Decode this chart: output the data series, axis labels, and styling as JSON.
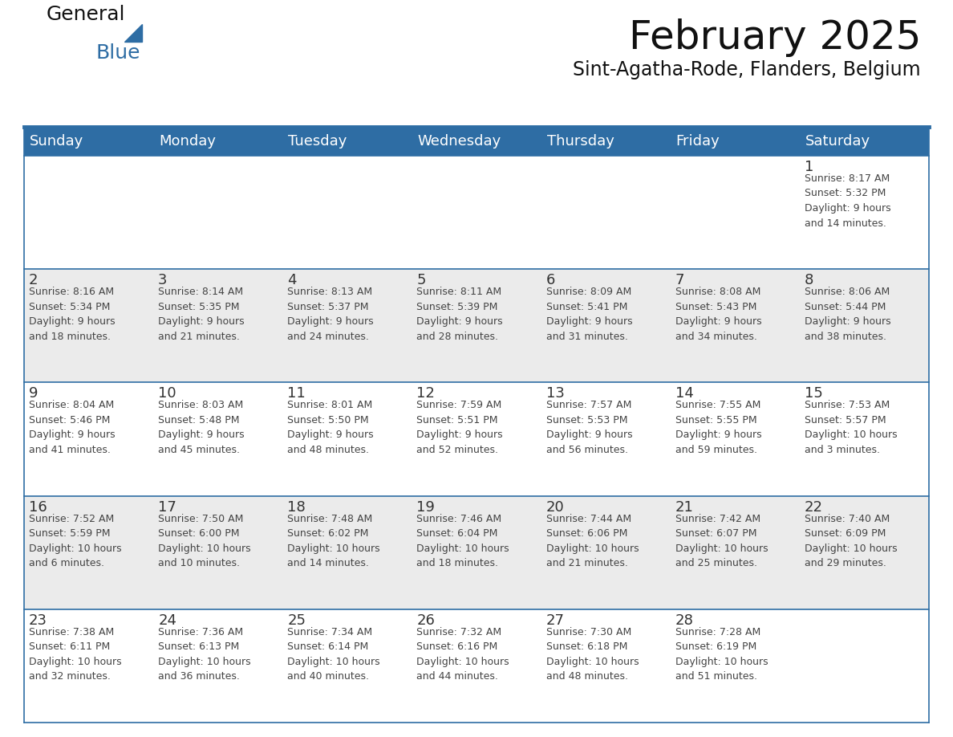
{
  "title": "February 2025",
  "subtitle": "Sint-Agatha-Rode, Flanders, Belgium",
  "header_color": "#2E6DA4",
  "header_text_color": "#FFFFFF",
  "cell_bg_even": "#FFFFFF",
  "cell_bg_odd": "#EBEBEB",
  "day_number_color": "#333333",
  "text_color": "#444444",
  "line_color": "#2E6DA4",
  "days_of_week": [
    "Sunday",
    "Monday",
    "Tuesday",
    "Wednesday",
    "Thursday",
    "Friday",
    "Saturday"
  ],
  "weeks": [
    [
      {
        "day": null,
        "info": null
      },
      {
        "day": null,
        "info": null
      },
      {
        "day": null,
        "info": null
      },
      {
        "day": null,
        "info": null
      },
      {
        "day": null,
        "info": null
      },
      {
        "day": null,
        "info": null
      },
      {
        "day": 1,
        "info": "Sunrise: 8:17 AM\nSunset: 5:32 PM\nDaylight: 9 hours\nand 14 minutes."
      }
    ],
    [
      {
        "day": 2,
        "info": "Sunrise: 8:16 AM\nSunset: 5:34 PM\nDaylight: 9 hours\nand 18 minutes."
      },
      {
        "day": 3,
        "info": "Sunrise: 8:14 AM\nSunset: 5:35 PM\nDaylight: 9 hours\nand 21 minutes."
      },
      {
        "day": 4,
        "info": "Sunrise: 8:13 AM\nSunset: 5:37 PM\nDaylight: 9 hours\nand 24 minutes."
      },
      {
        "day": 5,
        "info": "Sunrise: 8:11 AM\nSunset: 5:39 PM\nDaylight: 9 hours\nand 28 minutes."
      },
      {
        "day": 6,
        "info": "Sunrise: 8:09 AM\nSunset: 5:41 PM\nDaylight: 9 hours\nand 31 minutes."
      },
      {
        "day": 7,
        "info": "Sunrise: 8:08 AM\nSunset: 5:43 PM\nDaylight: 9 hours\nand 34 minutes."
      },
      {
        "day": 8,
        "info": "Sunrise: 8:06 AM\nSunset: 5:44 PM\nDaylight: 9 hours\nand 38 minutes."
      }
    ],
    [
      {
        "day": 9,
        "info": "Sunrise: 8:04 AM\nSunset: 5:46 PM\nDaylight: 9 hours\nand 41 minutes."
      },
      {
        "day": 10,
        "info": "Sunrise: 8:03 AM\nSunset: 5:48 PM\nDaylight: 9 hours\nand 45 minutes."
      },
      {
        "day": 11,
        "info": "Sunrise: 8:01 AM\nSunset: 5:50 PM\nDaylight: 9 hours\nand 48 minutes."
      },
      {
        "day": 12,
        "info": "Sunrise: 7:59 AM\nSunset: 5:51 PM\nDaylight: 9 hours\nand 52 minutes."
      },
      {
        "day": 13,
        "info": "Sunrise: 7:57 AM\nSunset: 5:53 PM\nDaylight: 9 hours\nand 56 minutes."
      },
      {
        "day": 14,
        "info": "Sunrise: 7:55 AM\nSunset: 5:55 PM\nDaylight: 9 hours\nand 59 minutes."
      },
      {
        "day": 15,
        "info": "Sunrise: 7:53 AM\nSunset: 5:57 PM\nDaylight: 10 hours\nand 3 minutes."
      }
    ],
    [
      {
        "day": 16,
        "info": "Sunrise: 7:52 AM\nSunset: 5:59 PM\nDaylight: 10 hours\nand 6 minutes."
      },
      {
        "day": 17,
        "info": "Sunrise: 7:50 AM\nSunset: 6:00 PM\nDaylight: 10 hours\nand 10 minutes."
      },
      {
        "day": 18,
        "info": "Sunrise: 7:48 AM\nSunset: 6:02 PM\nDaylight: 10 hours\nand 14 minutes."
      },
      {
        "day": 19,
        "info": "Sunrise: 7:46 AM\nSunset: 6:04 PM\nDaylight: 10 hours\nand 18 minutes."
      },
      {
        "day": 20,
        "info": "Sunrise: 7:44 AM\nSunset: 6:06 PM\nDaylight: 10 hours\nand 21 minutes."
      },
      {
        "day": 21,
        "info": "Sunrise: 7:42 AM\nSunset: 6:07 PM\nDaylight: 10 hours\nand 25 minutes."
      },
      {
        "day": 22,
        "info": "Sunrise: 7:40 AM\nSunset: 6:09 PM\nDaylight: 10 hours\nand 29 minutes."
      }
    ],
    [
      {
        "day": 23,
        "info": "Sunrise: 7:38 AM\nSunset: 6:11 PM\nDaylight: 10 hours\nand 32 minutes."
      },
      {
        "day": 24,
        "info": "Sunrise: 7:36 AM\nSunset: 6:13 PM\nDaylight: 10 hours\nand 36 minutes."
      },
      {
        "day": 25,
        "info": "Sunrise: 7:34 AM\nSunset: 6:14 PM\nDaylight: 10 hours\nand 40 minutes."
      },
      {
        "day": 26,
        "info": "Sunrise: 7:32 AM\nSunset: 6:16 PM\nDaylight: 10 hours\nand 44 minutes."
      },
      {
        "day": 27,
        "info": "Sunrise: 7:30 AM\nSunset: 6:18 PM\nDaylight: 10 hours\nand 48 minutes."
      },
      {
        "day": 28,
        "info": "Sunrise: 7:28 AM\nSunset: 6:19 PM\nDaylight: 10 hours\nand 51 minutes."
      },
      {
        "day": null,
        "info": null
      }
    ]
  ],
  "logo_general_color": "#111111",
  "logo_blue_color": "#2E6DA4",
  "logo_triangle_color": "#2E6DA4",
  "title_fontsize": 36,
  "subtitle_fontsize": 17,
  "header_fontsize": 13,
  "day_num_fontsize": 13,
  "cell_text_fontsize": 9
}
